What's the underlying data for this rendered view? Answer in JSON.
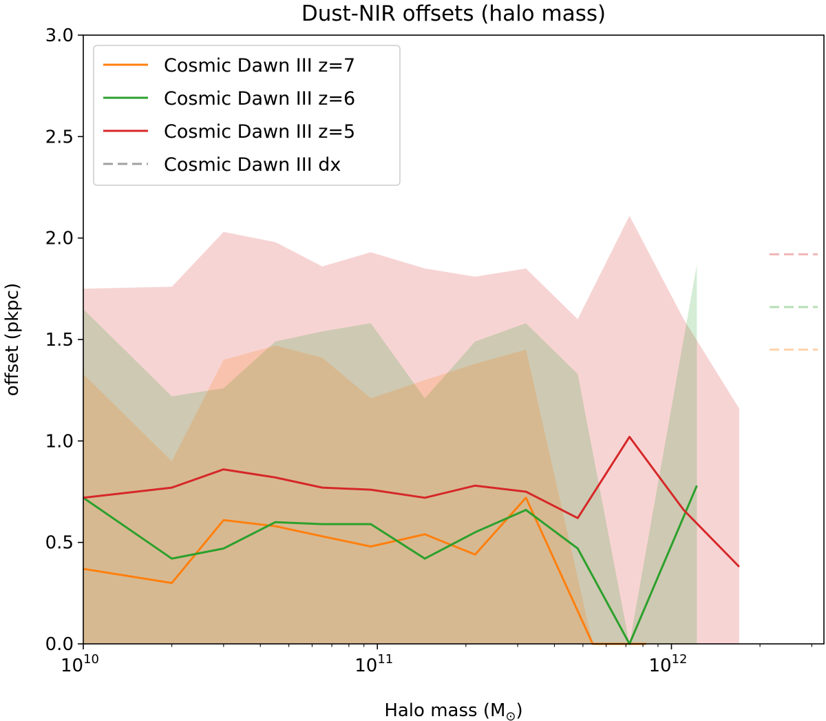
{
  "chart_data": {
    "type": "line",
    "title": "Dust-NIR offsets (halo mass)",
    "xlabel": "Halo mass (M",
    "xlabel_sub": "⊙",
    "xlabel_close": ")",
    "ylabel": "offset (pkpc)",
    "xscale": "log",
    "xlim": [
      10000000000.0,
      3300000000000.0
    ],
    "ylim": [
      0,
      3.0
    ],
    "x_ticks": [
      {
        "value": 10000000000.0,
        "base": "10",
        "exp": "10"
      },
      {
        "value": 100000000000.0,
        "base": "10",
        "exp": "11"
      },
      {
        "value": 1000000000000.0,
        "base": "10",
        "exp": "12"
      }
    ],
    "y_ticks": [
      {
        "value": 0.0,
        "label": "0.0"
      },
      {
        "value": 0.5,
        "label": "0.5"
      },
      {
        "value": 1.0,
        "label": "1.0"
      },
      {
        "value": 1.5,
        "label": "1.5"
      },
      {
        "value": 2.0,
        "label": "2.0"
      },
      {
        "value": 2.5,
        "label": "2.5"
      },
      {
        "value": 3.0,
        "label": "3.0"
      }
    ],
    "legend_position": "top-left",
    "grid": false,
    "series": [
      {
        "name": "Cosmic Dawn III z=7",
        "color": "#ff7f0e",
        "x": [
          10000000000.0,
          20000000000.0,
          30000000000.0,
          45000000000.0,
          65000000000.0,
          95000000000.0,
          145000000000.0,
          215000000000.0,
          320000000000.0,
          540000000000.0,
          730000000000.0,
          820000000000.0
        ],
        "y": [
          0.37,
          0.3,
          0.61,
          0.58,
          0.53,
          0.48,
          0.54,
          0.44,
          0.72,
          0.0,
          0.0,
          0.0
        ],
        "upper": [
          1.33,
          0.9,
          1.4,
          1.47,
          1.41,
          1.21,
          1.3,
          1.38,
          1.45,
          0.0,
          0.0,
          0.0
        ],
        "lower": [
          0,
          0,
          0,
          0,
          0,
          0,
          0,
          0,
          0,
          0,
          0,
          0
        ]
      },
      {
        "name": "Cosmic Dawn III z=6",
        "color": "#2ca02c",
        "x": [
          10000000000.0,
          20000000000.0,
          30000000000.0,
          45000000000.0,
          65000000000.0,
          95000000000.0,
          145000000000.0,
          215000000000.0,
          320000000000.0,
          480000000000.0,
          720000000000.0,
          1220000000000.0
        ],
        "y": [
          0.72,
          0.42,
          0.47,
          0.6,
          0.59,
          0.59,
          0.42,
          0.55,
          0.66,
          0.47,
          0.0,
          0.78
        ],
        "upper": [
          1.65,
          1.22,
          1.26,
          1.49,
          1.54,
          1.58,
          1.21,
          1.49,
          1.58,
          1.33,
          0.0,
          1.87
        ],
        "lower": [
          0,
          0,
          0,
          0,
          0,
          0,
          0,
          0,
          0,
          0,
          0,
          0
        ]
      },
      {
        "name": "Cosmic Dawn III z=5",
        "color": "#d62728",
        "x": [
          10000000000.0,
          20000000000.0,
          30000000000.0,
          45000000000.0,
          65000000000.0,
          95000000000.0,
          145000000000.0,
          215000000000.0,
          320000000000.0,
          480000000000.0,
          720000000000.0,
          1100000000000.0,
          1700000000000.0
        ],
        "y": [
          0.72,
          0.77,
          0.86,
          0.82,
          0.77,
          0.76,
          0.72,
          0.78,
          0.75,
          0.62,
          1.02,
          0.66,
          0.38
        ],
        "upper": [
          1.75,
          1.76,
          2.03,
          1.98,
          1.86,
          1.93,
          1.85,
          1.81,
          1.85,
          1.6,
          2.11,
          1.6,
          1.16
        ],
        "lower": [
          0,
          0,
          0,
          0,
          0,
          0,
          0,
          0,
          0,
          0,
          0,
          0,
          0
        ]
      }
    ],
    "dx_legend": {
      "name": "Cosmic Dawn III dx",
      "color": "#a0a0a0"
    },
    "dx_markers": [
      {
        "series": "Cosmic Dawn III z=5",
        "y": 1.92,
        "color": "#d62728"
      },
      {
        "series": "Cosmic Dawn III z=6",
        "y": 1.66,
        "color": "#2ca02c"
      },
      {
        "series": "Cosmic Dawn III z=7",
        "y": 1.45,
        "color": "#ff7f0e"
      }
    ]
  }
}
